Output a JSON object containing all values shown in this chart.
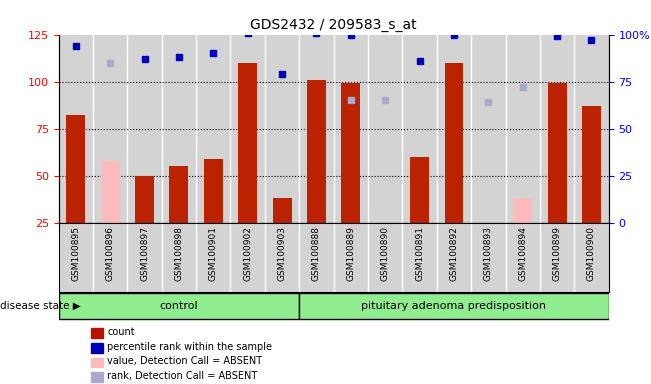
{
  "title": "GDS2432 / 209583_s_at",
  "samples": [
    "GSM100895",
    "GSM100896",
    "GSM100897",
    "GSM100898",
    "GSM100901",
    "GSM100902",
    "GSM100903",
    "GSM100888",
    "GSM100889",
    "GSM100890",
    "GSM100891",
    "GSM100892",
    "GSM100893",
    "GSM100894",
    "GSM100899",
    "GSM100900"
  ],
  "groups": [
    {
      "label": "control",
      "start": 0,
      "end": 7
    },
    {
      "label": "pituitary adenoma predisposition",
      "start": 7,
      "end": 16
    }
  ],
  "red_bars": [
    82,
    null,
    50,
    55,
    59,
    110,
    38,
    101,
    99,
    null,
    60,
    110,
    25,
    null,
    99,
    87
  ],
  "pink_bars": [
    null,
    58,
    null,
    null,
    null,
    null,
    null,
    null,
    null,
    null,
    null,
    null,
    null,
    38,
    null,
    null
  ],
  "blue_squares": [
    94,
    null,
    87,
    88,
    90,
    101,
    79,
    101,
    100,
    null,
    86,
    100,
    null,
    null,
    99,
    97
  ],
  "light_blue_squares": [
    null,
    85,
    null,
    null,
    null,
    null,
    null,
    null,
    65,
    65,
    null,
    null,
    64,
    72,
    null,
    null
  ],
  "ylim_left": [
    25,
    125
  ],
  "ylim_right": [
    0,
    100
  ],
  "yticks_left": [
    25,
    50,
    75,
    100,
    125
  ],
  "yticks_right": [
    0,
    25,
    50,
    75,
    100
  ],
  "hlines": [
    50,
    75,
    100
  ],
  "legend_labels": [
    "count",
    "percentile rank within the sample",
    "value, Detection Call = ABSENT",
    "rank, Detection Call = ABSENT"
  ],
  "legend_colors": [
    "#bb1100",
    "#0000bb",
    "#ffbbbb",
    "#aaaacc"
  ],
  "disease_state_label": "disease state",
  "bar_width": 0.55,
  "plot_bg_color": "#d3d3d3",
  "group_color": "#90ee90"
}
